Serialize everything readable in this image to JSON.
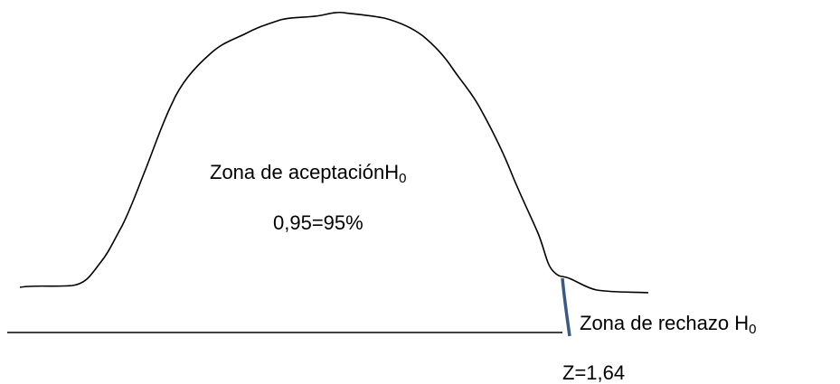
{
  "acceptance_zone": {
    "label": "Zona de aceptación",
    "symbol": "H",
    "subscript": "0",
    "probability": "0,95=95%"
  },
  "rejection_zone": {
    "label": "Zona de rechazo ",
    "symbol": "H",
    "subscript": "0",
    "critical_value": "Z=1,64"
  }
}
